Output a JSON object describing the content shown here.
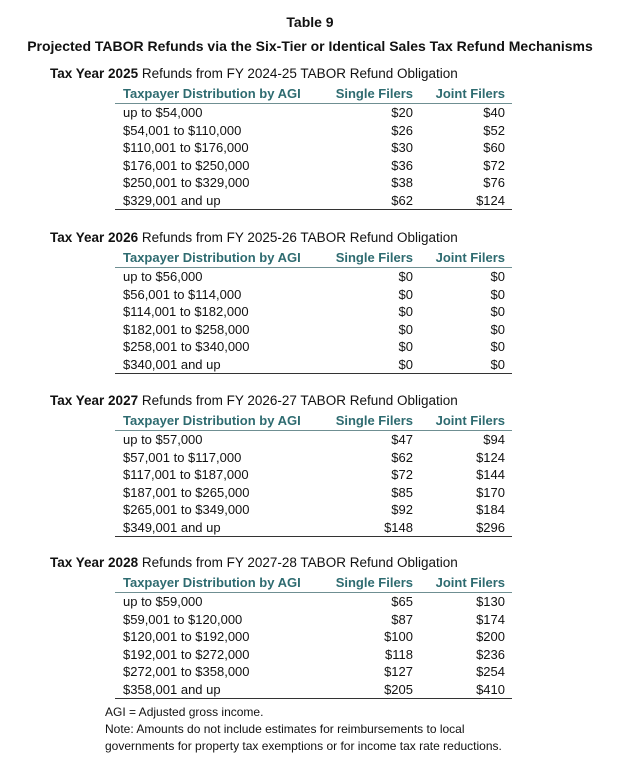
{
  "title": "Table 9",
  "subtitle": "Projected TABOR Refunds via the Six-Tier or Identical Sales Tax Refund Mechanisms",
  "columns": [
    "Taxpayer Distribution by AGI",
    "Single Filers",
    "Joint Filers"
  ],
  "sections": [
    {
      "year_label": "Tax Year 2025",
      "heading_rest": " Refunds from FY 2024-25 TABOR Refund Obligation",
      "rows": [
        [
          "up to $54,000",
          "$20",
          "$40"
        ],
        [
          "$54,001 to $110,000",
          "$26",
          "$52"
        ],
        [
          "$110,001 to $176,000",
          "$30",
          "$60"
        ],
        [
          "$176,001 to $250,000",
          "$36",
          "$72"
        ],
        [
          "$250,001 to $329,000",
          "$38",
          "$76"
        ],
        [
          "$329,001 and up",
          "$62",
          "$124"
        ]
      ]
    },
    {
      "year_label": "Tax Year 2026",
      "heading_rest": " Refunds from FY 2025-26 TABOR Refund Obligation",
      "rows": [
        [
          "up to $56,000",
          "$0",
          "$0"
        ],
        [
          "$56,001 to $114,000",
          "$0",
          "$0"
        ],
        [
          "$114,001 to $182,000",
          "$0",
          "$0"
        ],
        [
          "$182,001 to $258,000",
          "$0",
          "$0"
        ],
        [
          "$258,001 to $340,000",
          "$0",
          "$0"
        ],
        [
          "$340,001 and up",
          "$0",
          "$0"
        ]
      ]
    },
    {
      "year_label": "Tax Year 2027",
      "heading_rest": " Refunds from FY 2026-27 TABOR Refund Obligation",
      "rows": [
        [
          "up to $57,000",
          "$47",
          "$94"
        ],
        [
          "$57,001 to $117,000",
          "$62",
          "$124"
        ],
        [
          "$117,001 to $187,000",
          "$72",
          "$144"
        ],
        [
          "$187,001 to $265,000",
          "$85",
          "$170"
        ],
        [
          "$265,001 to $349,000",
          "$92",
          "$184"
        ],
        [
          "$349,001 and up",
          "$148",
          "$296"
        ]
      ]
    },
    {
      "year_label": "Tax Year 2028",
      "heading_rest": " Refunds from FY 2027-28 TABOR Refund Obligation",
      "rows": [
        [
          "up to $59,000",
          "$65",
          "$130"
        ],
        [
          "$59,001 to $120,000",
          "$87",
          "$174"
        ],
        [
          "$120,001 to $192,000",
          "$100",
          "$200"
        ],
        [
          "$192,001 to $272,000",
          "$118",
          "$236"
        ],
        [
          "$272,001 to $358,000",
          "$127",
          "$254"
        ],
        [
          "$358,001 and up",
          "$205",
          "$410"
        ]
      ]
    }
  ],
  "notes": [
    "AGI = Adjusted gross income.",
    "Note:  Amounts do not include estimates for reimbursements to local",
    "governments for property tax exemptions or for income tax rate reductions."
  ],
  "colors": {
    "header_text": "#2e6b70"
  }
}
